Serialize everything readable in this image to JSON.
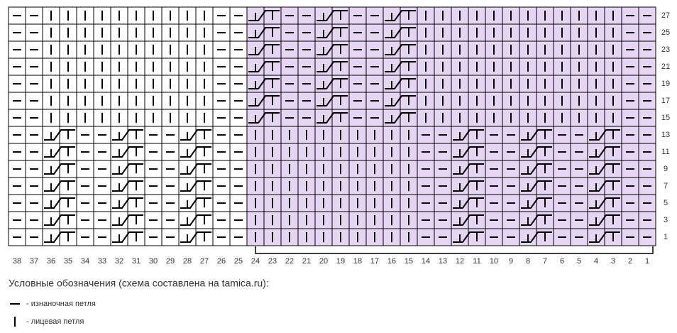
{
  "row_numbers": [
    27,
    25,
    23,
    21,
    19,
    17,
    15,
    13,
    11,
    9,
    7,
    5,
    3,
    1
  ],
  "column_numbers": [
    38,
    37,
    36,
    35,
    34,
    33,
    32,
    31,
    30,
    29,
    28,
    27,
    26,
    25,
    24,
    23,
    22,
    21,
    20,
    19,
    18,
    17,
    16,
    15,
    14,
    13,
    12,
    11,
    10,
    9,
    8,
    7,
    6,
    5,
    4,
    3,
    2,
    1
  ],
  "legend": {
    "title": "Условные обозначения (схема составлена на tamica.ru):",
    "items": [
      "- изнаночная петля",
      "- лицевая петля"
    ]
  }
}
